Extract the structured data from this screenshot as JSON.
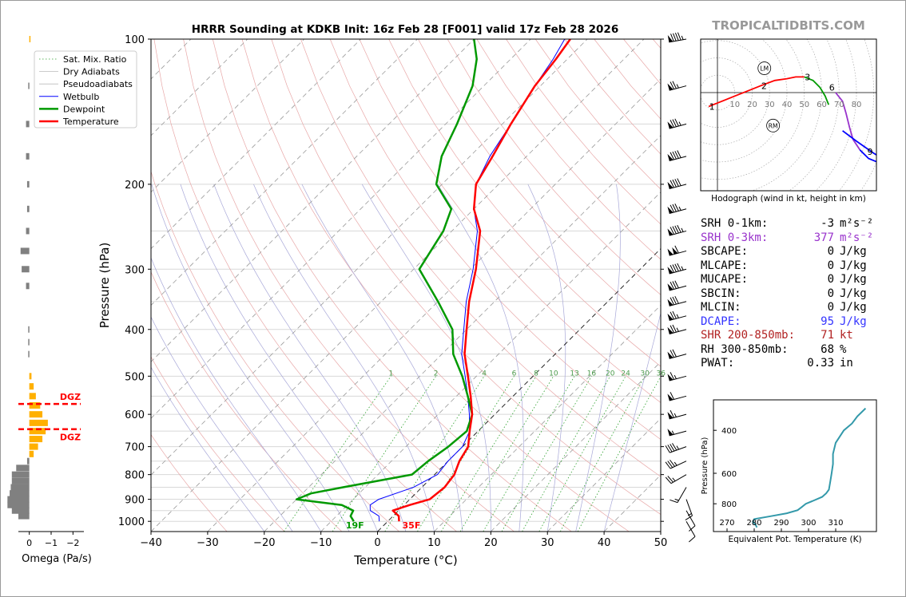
{
  "title": "HRRR Sounding at KDKB Init: 16z Feb 28 [F001] valid 17z Feb 28 2026",
  "brand": "TROPICALTIDBITS.COM",
  "colors": {
    "temperature": "#ff0000",
    "dewpoint": "#009900",
    "wetbulb": "#0000ff",
    "omega_up": "#ffb000",
    "omega_down": "#808080",
    "srh3": "#9933cc",
    "dcape": "#3333ff",
    "shear": "#b22222",
    "hodo_0_3": "#ff0000",
    "hodo_3_6": "#009900",
    "hodo_6_9": "#9933cc",
    "hodo_9_12": "#0000ff",
    "theta_e": "#3399aa"
  },
  "chart_data": [
    {
      "type": "line",
      "name": "skew-t",
      "xlabel": "Temperature (°C)",
      "ylabel": "Pressure (hPa)",
      "xlim": [
        -40,
        50
      ],
      "ylim": [
        1050,
        100
      ],
      "y_scale": "log",
      "skew": true,
      "x_ticks": [
        -40,
        -30,
        -20,
        -10,
        0,
        10,
        20,
        30,
        40,
        50
      ],
      "y_ticks": [
        100,
        200,
        300,
        400,
        500,
        600,
        700,
        800,
        900,
        1000
      ],
      "mixing_ratio_labels": [
        "1",
        "2",
        "4",
        "6",
        "8",
        "10",
        "13",
        "16",
        "20",
        "24",
        "30",
        "36"
      ],
      "legend": {
        "placement": "top-left",
        "entries": [
          "Sat. Mix. Ratio",
          "Dry Adiabats",
          "Pseudoadiabats",
          "Wetbulb",
          "Dewpoint",
          "Temperature"
        ]
      },
      "surface_labels": {
        "temperature": "35F",
        "dewpoint": "19F"
      },
      "series": [
        {
          "name": "Temperature",
          "points": [
            [
              1000,
              2.0
            ],
            [
              975,
              1.0
            ],
            [
              950,
              -1.0
            ],
            [
              925,
              1.0
            ],
            [
              900,
              3.5
            ],
            [
              850,
              4.0
            ],
            [
              800,
              3.5
            ],
            [
              750,
              2.0
            ],
            [
              700,
              1.0
            ],
            [
              650,
              -1.5
            ],
            [
              600,
              -4.0
            ],
            [
              550,
              -7.5
            ],
            [
              500,
              -11.5
            ],
            [
              450,
              -16.0
            ],
            [
              400,
              -20.0
            ],
            [
              350,
              -24.5
            ],
            [
              300,
              -29.0
            ],
            [
              250,
              -35.0
            ],
            [
              225,
              -40.0
            ],
            [
              200,
              -44.0
            ],
            [
              175,
              -46.0
            ],
            [
              150,
              -48.5
            ],
            [
              125,
              -51.0
            ],
            [
              110,
              -52.0
            ],
            [
              100,
              -53.0
            ]
          ]
        },
        {
          "name": "Dewpoint",
          "points": [
            [
              1000,
              -6.0
            ],
            [
              975,
              -7.5
            ],
            [
              950,
              -8.0
            ],
            [
              925,
              -11.0
            ],
            [
              900,
              -20.0
            ],
            [
              875,
              -18.5
            ],
            [
              850,
              -14.0
            ],
            [
              800,
              -4.0
            ],
            [
              750,
              -3.5
            ],
            [
              700,
              -2.5
            ],
            [
              650,
              -2.0
            ],
            [
              600,
              -4.0
            ],
            [
              550,
              -8.0
            ],
            [
              500,
              -12.5
            ],
            [
              450,
              -18.0
            ],
            [
              400,
              -22.5
            ],
            [
              350,
              -30.0
            ],
            [
              300,
              -39.0
            ],
            [
              250,
              -41.5
            ],
            [
              225,
              -44.0
            ],
            [
              200,
              -51.0
            ],
            [
              175,
              -55.0
            ],
            [
              150,
              -58.0
            ],
            [
              125,
              -62.0
            ],
            [
              110,
              -66.0
            ],
            [
              100,
              -70.0
            ]
          ]
        },
        {
          "name": "Wetbulb",
          "points": [
            [
              1000,
              -1.5
            ],
            [
              975,
              -2.5
            ],
            [
              950,
              -5.0
            ],
            [
              925,
              -6.0
            ],
            [
              900,
              -5.5
            ],
            [
              850,
              -1.5
            ],
            [
              800,
              0.5
            ],
            [
              750,
              0.0
            ],
            [
              700,
              0.0
            ],
            [
              650,
              -1.5
            ],
            [
              600,
              -4.5
            ],
            [
              550,
              -8.0
            ],
            [
              500,
              -12.0
            ],
            [
              450,
              -16.5
            ],
            [
              400,
              -20.5
            ],
            [
              350,
              -25.0
            ],
            [
              300,
              -29.5
            ],
            [
              250,
              -35.5
            ],
            [
              225,
              -40.0
            ],
            [
              200,
              -44.0
            ],
            [
              175,
              -46.5
            ],
            [
              150,
              -48.5
            ],
            [
              125,
              -51.0
            ],
            [
              110,
              -52.5
            ],
            [
              100,
              -54.0
            ]
          ]
        }
      ]
    },
    {
      "type": "bar",
      "name": "omega",
      "xlabel": "Omega (Pa/s)",
      "x_ticks": [
        "0",
        "−1",
        "−2"
      ],
      "xlim": [
        0.5,
        -2.5
      ],
      "dgz": {
        "label": "DGZ",
        "top_hpa": 571,
        "bottom_hpa": 644
      },
      "values": [
        [
          100,
          -0.05
        ],
        [
          125,
          0.05
        ],
        [
          150,
          0.15
        ],
        [
          175,
          0.15
        ],
        [
          200,
          0.1
        ],
        [
          225,
          0.1
        ],
        [
          250,
          0.15
        ],
        [
          275,
          0.4
        ],
        [
          300,
          0.35
        ],
        [
          325,
          0.15
        ],
        [
          400,
          0.05
        ],
        [
          425,
          0.05
        ],
        [
          450,
          0.05
        ],
        [
          475,
          0.0
        ],
        [
          500,
          -0.1
        ],
        [
          525,
          -0.2
        ],
        [
          550,
          -0.3
        ],
        [
          575,
          -0.5
        ],
        [
          600,
          -0.6
        ],
        [
          625,
          -0.85
        ],
        [
          650,
          -0.75
        ],
        [
          675,
          -0.6
        ],
        [
          700,
          -0.4
        ],
        [
          725,
          -0.2
        ],
        [
          750,
          0.1
        ],
        [
          775,
          0.6
        ],
        [
          800,
          0.8
        ],
        [
          825,
          0.8
        ],
        [
          850,
          0.85
        ],
        [
          875,
          0.9
        ],
        [
          900,
          1.0
        ],
        [
          925,
          1.0
        ],
        [
          950,
          0.8
        ],
        [
          975,
          0.5
        ]
      ]
    },
    {
      "type": "line",
      "name": "hodograph",
      "xlabel": "Hodograph (wind in kt, height in km)",
      "ring_labels": [
        "10",
        "20",
        "30",
        "40",
        "50",
        "60",
        "70",
        "80"
      ],
      "height_labels": [
        "1",
        "2",
        "3",
        "6",
        "9"
      ],
      "storm_motion_labels": [
        "LM",
        "RM"
      ],
      "series": [
        {
          "name": "0-3 km",
          "points": [
            [
              -5,
              -8
            ],
            [
              0,
              -6
            ],
            [
              10,
              -2
            ],
            [
              20,
              2
            ],
            [
              25,
              4
            ],
            [
              33,
              7
            ],
            [
              40,
              8
            ],
            [
              45,
              9
            ],
            [
              50,
              9
            ]
          ]
        },
        {
          "name": "3-6 km",
          "points": [
            [
              50,
              9
            ],
            [
              55,
              7
            ],
            [
              59,
              3
            ],
            [
              62,
              -2
            ],
            [
              64,
              -7
            ]
          ]
        },
        {
          "name": "6-9 km",
          "points": [
            [
              68,
              0
            ],
            [
              72,
              -5
            ],
            [
              74,
              -12
            ],
            [
              76,
              -20
            ],
            [
              78,
              -27
            ],
            [
              82,
              -33
            ]
          ]
        },
        {
          "name": "9-12 km",
          "points": [
            [
              82,
              -33
            ],
            [
              87,
              -38
            ],
            [
              92,
              -40
            ],
            [
              95,
              -38
            ],
            [
              90,
              -35
            ],
            [
              80,
              -28
            ],
            [
              72,
              -22
            ]
          ]
        }
      ],
      "label_points": [
        {
          "text": "1",
          "u": -5,
          "v": -8
        },
        {
          "text": "2",
          "u": 25,
          "v": 4
        },
        {
          "text": "3",
          "u": 50,
          "v": 9
        },
        {
          "text": "6",
          "u": 64,
          "v": 3
        },
        {
          "text": "9",
          "u": 86,
          "v": -34
        },
        {
          "text": "LM",
          "u": 27,
          "v": 14
        },
        {
          "text": "RM",
          "u": 32,
          "v": -19
        }
      ]
    },
    {
      "type": "line",
      "name": "theta-e",
      "xlabel": "Equivalent Pot. Temperature (K)",
      "ylabel": "Pressure (hPa)",
      "x_ticks": [
        270,
        280,
        290,
        300,
        310
      ],
      "xlim": [
        265,
        325
      ],
      "y_ticks": [
        400,
        600,
        800
      ],
      "ylim": [
        1040,
        300
      ],
      "points": [
        [
          1000,
          281
        ],
        [
          975,
          280.5
        ],
        [
          950,
          279.5
        ],
        [
          925,
          280
        ],
        [
          900,
          286
        ],
        [
          875,
          292
        ],
        [
          850,
          296
        ],
        [
          825,
          297.5
        ],
        [
          800,
          299
        ],
        [
          775,
          302
        ],
        [
          750,
          305
        ],
        [
          725,
          306.5
        ],
        [
          700,
          307.5
        ],
        [
          650,
          308
        ],
        [
          600,
          308.5
        ],
        [
          550,
          309
        ],
        [
          500,
          309
        ],
        [
          450,
          310
        ],
        [
          400,
          313
        ],
        [
          375,
          316
        ],
        [
          350,
          318
        ],
        [
          325,
          321
        ]
      ]
    }
  ],
  "indices": [
    {
      "label": "SRH 0-1km:",
      "value": "-3",
      "unit": "m²s⁻²",
      "color": "#000000"
    },
    {
      "label": "SRH 0-3km:",
      "value": "377",
      "unit": "m²s⁻²",
      "color": "#9933cc"
    },
    {
      "label": "SBCAPE:",
      "value": "0",
      "unit": "J/kg",
      "color": "#000000"
    },
    {
      "label": "MLCAPE:",
      "value": "0",
      "unit": "J/kg",
      "color": "#000000"
    },
    {
      "label": "MUCAPE:",
      "value": "0",
      "unit": "J/kg",
      "color": "#000000"
    },
    {
      "label": "SBCIN:",
      "value": "0",
      "unit": "J/kg",
      "color": "#000000"
    },
    {
      "label": "MLCIN:",
      "value": "0",
      "unit": "J/kg",
      "color": "#000000"
    },
    {
      "label": "DCAPE:",
      "value": "95",
      "unit": "J/kg",
      "color": "#3333ff"
    },
    {
      "label": "SHR 200-850mb:",
      "value": "71",
      "unit": "kt",
      "color": "#b22222"
    },
    {
      "label": "RH 300-850mb:",
      "value": "68",
      "unit": "%",
      "color": "#000000"
    },
    {
      "label": "PWAT:",
      "value": "0.33",
      "unit": "in",
      "color": "#000000"
    }
  ],
  "wind_barbs": [
    {
      "p": 100,
      "dir": 260,
      "spd": 95
    },
    {
      "p": 125,
      "dir": 255,
      "spd": 75
    },
    {
      "p": 150,
      "dir": 255,
      "spd": 85
    },
    {
      "p": 175,
      "dir": 255,
      "spd": 90
    },
    {
      "p": 200,
      "dir": 255,
      "spd": 90
    },
    {
      "p": 225,
      "dir": 255,
      "spd": 85
    },
    {
      "p": 250,
      "dir": 255,
      "spd": 95
    },
    {
      "p": 275,
      "dir": 255,
      "spd": 110
    },
    {
      "p": 300,
      "dir": 255,
      "spd": 95
    },
    {
      "p": 325,
      "dir": 255,
      "spd": 80
    },
    {
      "p": 350,
      "dir": 255,
      "spd": 80
    },
    {
      "p": 375,
      "dir": 255,
      "spd": 75
    },
    {
      "p": 400,
      "dir": 255,
      "spd": 75
    },
    {
      "p": 450,
      "dir": 255,
      "spd": 70
    },
    {
      "p": 500,
      "dir": 255,
      "spd": 65
    },
    {
      "p": 550,
      "dir": 255,
      "spd": 60
    },
    {
      "p": 600,
      "dir": 255,
      "spd": 65
    },
    {
      "p": 650,
      "dir": 255,
      "spd": 55
    },
    {
      "p": 700,
      "dir": 250,
      "spd": 45
    },
    {
      "p": 750,
      "dir": 245,
      "spd": 35
    },
    {
      "p": 800,
      "dir": 240,
      "spd": 25
    },
    {
      "p": 850,
      "dir": 210,
      "spd": 15
    },
    {
      "p": 900,
      "dir": 160,
      "spd": 15
    },
    {
      "p": 950,
      "dir": 150,
      "spd": 10
    },
    {
      "p": 1000,
      "dir": 150,
      "spd": 10
    }
  ]
}
